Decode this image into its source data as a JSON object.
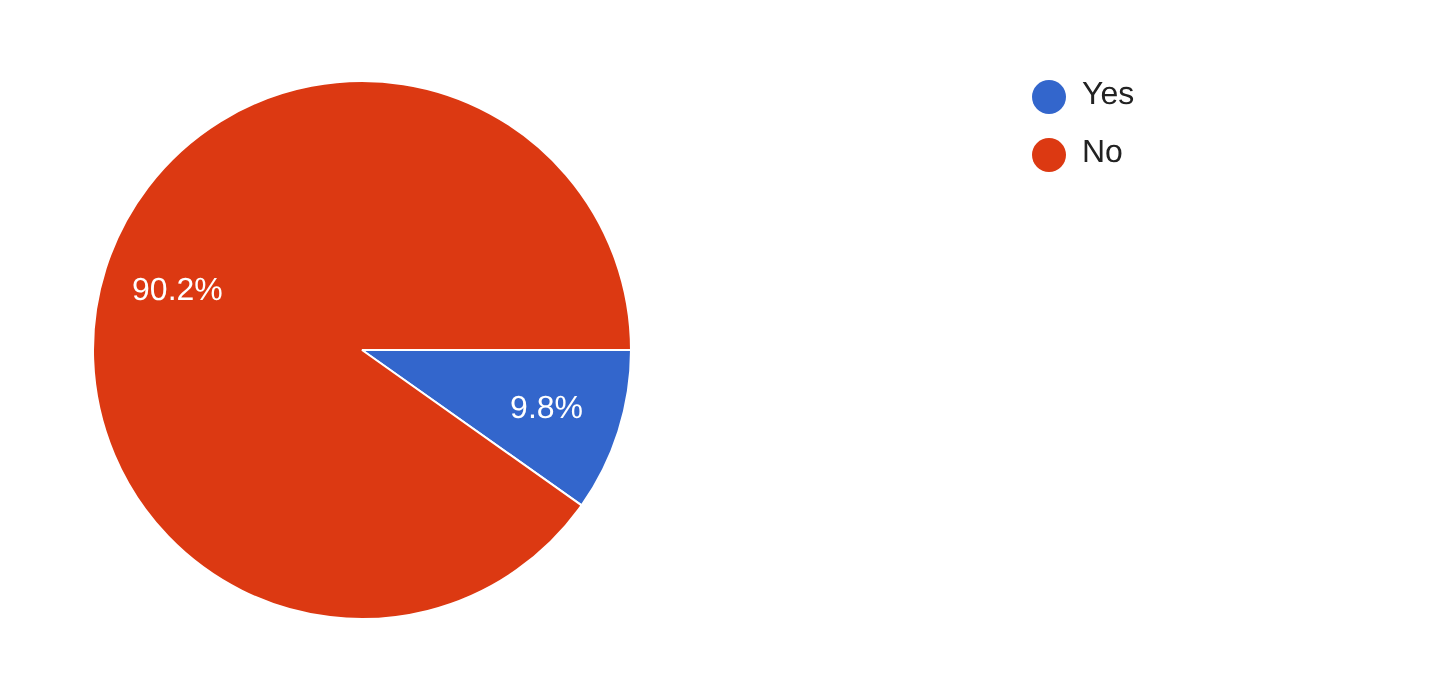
{
  "chart_data": {
    "type": "pie",
    "categories": [
      "Yes",
      "No"
    ],
    "values": [
      9.8,
      90.2
    ],
    "colors": [
      "#3366cc",
      "#dc3912"
    ],
    "legend": "top right",
    "value_labels": [
      "9.8%",
      "90.2%"
    ]
  }
}
